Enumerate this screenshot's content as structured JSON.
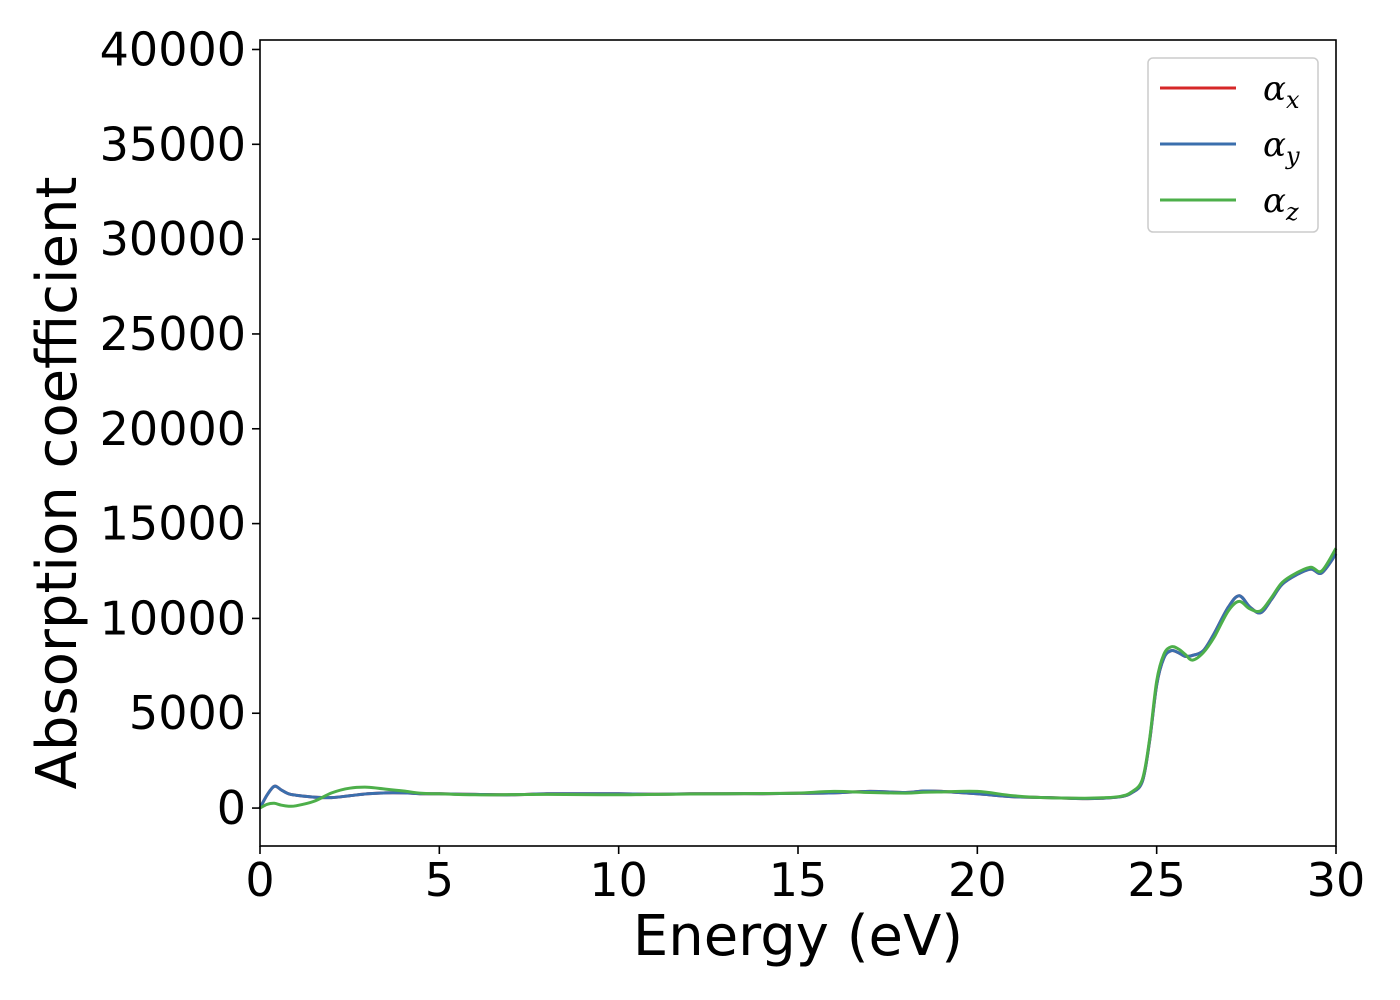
{
  "chart_data": {
    "type": "line",
    "title": "",
    "xlabel": "Energy (eV)",
    "ylabel": "Absorption coefficient",
    "xlim": [
      0,
      30
    ],
    "ylim": [
      -2000,
      40500
    ],
    "xticks": [
      0,
      5,
      10,
      15,
      20,
      25,
      30
    ],
    "yticks": [
      0,
      5000,
      10000,
      15000,
      20000,
      25000,
      30000,
      35000,
      40000
    ],
    "grid": false,
    "legend_position": "top-right",
    "series": [
      {
        "name": "αx",
        "symbol": "α",
        "subscript": "x",
        "color": "#d62728",
        "x": [
          0,
          0.2,
          0.4,
          0.6,
          0.8,
          1.0,
          1.5,
          2.0,
          2.5,
          3.0,
          3.5,
          4.0,
          4.5,
          5,
          6,
          7,
          8,
          9,
          10,
          11,
          12,
          13,
          14,
          15,
          16,
          17,
          18,
          18.5,
          19,
          20,
          21,
          22,
          23,
          23.5,
          24,
          24.3,
          24.6,
          24.8,
          25.0,
          25.2,
          25.4,
          25.6,
          25.8,
          26.0,
          26.3,
          26.6,
          27.0,
          27.3,
          27.6,
          27.9,
          28.2,
          28.5,
          28.9,
          29.3,
          29.6,
          30
        ],
        "y": [
          0,
          700,
          1150,
          950,
          750,
          680,
          580,
          550,
          650,
          750,
          800,
          800,
          760,
          750,
          720,
          700,
          750,
          750,
          750,
          730,
          750,
          760,
          760,
          780,
          800,
          880,
          820,
          900,
          880,
          750,
          600,
          550,
          500,
          520,
          600,
          800,
          1400,
          3500,
          6500,
          7900,
          8300,
          8200,
          8000,
          8050,
          8300,
          9200,
          10600,
          11200,
          10600,
          10300,
          11000,
          11800,
          12300,
          12600,
          12400,
          13400
        ]
      },
      {
        "name": "αy",
        "symbol": "α",
        "subscript": "y",
        "color": "#3b6fad",
        "x": [
          0,
          0.2,
          0.4,
          0.6,
          0.8,
          1.0,
          1.5,
          2.0,
          2.5,
          3.0,
          3.5,
          4.0,
          4.5,
          5,
          6,
          7,
          8,
          9,
          10,
          11,
          12,
          13,
          14,
          15,
          16,
          17,
          18,
          18.5,
          19,
          20,
          21,
          22,
          23,
          23.5,
          24,
          24.3,
          24.6,
          24.8,
          25.0,
          25.2,
          25.4,
          25.6,
          25.8,
          26.0,
          26.3,
          26.6,
          27.0,
          27.3,
          27.6,
          27.9,
          28.2,
          28.5,
          28.9,
          29.3,
          29.6,
          30
        ],
        "y": [
          0,
          700,
          1150,
          950,
          750,
          680,
          580,
          550,
          650,
          750,
          800,
          800,
          760,
          750,
          720,
          700,
          750,
          750,
          750,
          730,
          750,
          760,
          760,
          780,
          800,
          880,
          820,
          900,
          880,
          750,
          600,
          550,
          500,
          520,
          600,
          800,
          1400,
          3500,
          6500,
          7900,
          8300,
          8200,
          8000,
          8050,
          8300,
          9200,
          10600,
          11200,
          10600,
          10300,
          11000,
          11800,
          12300,
          12600,
          12400,
          13400
        ]
      },
      {
        "name": "αz",
        "symbol": "α",
        "subscript": "z",
        "color": "#4daf4a",
        "x": [
          0,
          0.2,
          0.4,
          0.6,
          0.8,
          1.0,
          1.5,
          2.0,
          2.5,
          3.0,
          3.5,
          4.0,
          4.5,
          5,
          6,
          7,
          8,
          9,
          10,
          11,
          12,
          13,
          14,
          15,
          16,
          17,
          18,
          18.5,
          19,
          20,
          21,
          22,
          23,
          23.5,
          24,
          24.3,
          24.6,
          24.8,
          25.0,
          25.2,
          25.4,
          25.6,
          25.8,
          26.0,
          26.3,
          26.6,
          27.0,
          27.3,
          27.6,
          27.9,
          28.2,
          28.5,
          28.9,
          29.3,
          29.6,
          30
        ],
        "y": [
          0,
          200,
          250,
          150,
          100,
          120,
          350,
          800,
          1050,
          1100,
          1000,
          900,
          780,
          750,
          700,
          710,
          720,
          710,
          700,
          720,
          740,
          750,
          770,
          790,
          880,
          820,
          790,
          830,
          850,
          880,
          650,
          540,
          520,
          540,
          620,
          850,
          1500,
          3600,
          6700,
          8100,
          8500,
          8400,
          8100,
          7800,
          8200,
          9000,
          10400,
          10900,
          10500,
          10400,
          11100,
          11900,
          12400,
          12700,
          12500,
          13700
        ]
      }
    ]
  }
}
